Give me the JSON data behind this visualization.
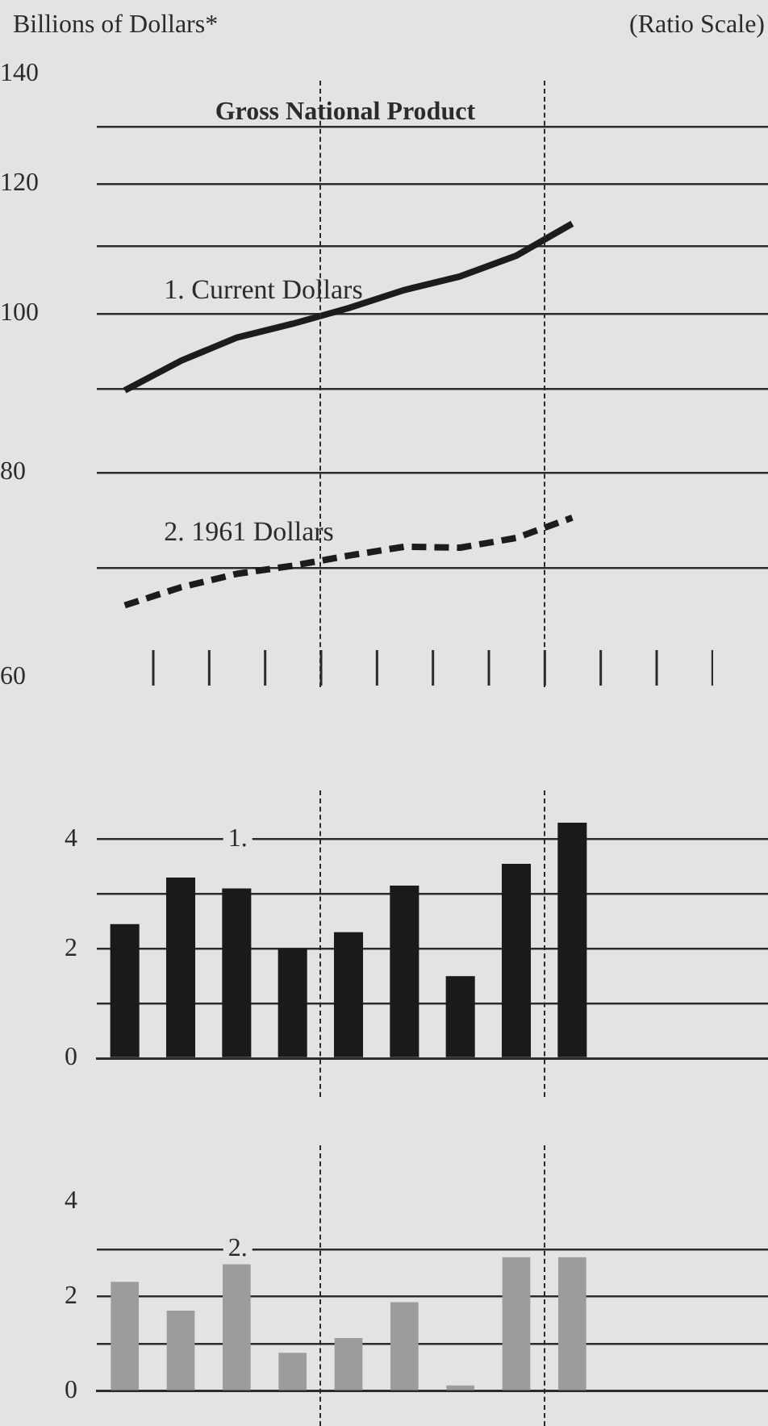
{
  "chart_data": [
    {
      "type": "line",
      "title": "Gross National Product",
      "ylabel": "Billions of Dollars*",
      "annotations": [
        "(Ratio Scale)"
      ],
      "log": true,
      "ylim": [
        60,
        140
      ],
      "yticks": [
        60,
        {
          "value": 70,
          "label": null
        },
        80,
        {
          "value": 90,
          "label": null
        },
        100,
        {
          "value": 110,
          "label": null
        },
        120,
        {
          "value": 130,
          "label": null
        },
        140
      ],
      "categories": [
        null,
        null,
        null,
        null,
        null,
        null,
        null,
        null,
        null,
        null,
        null,
        null
      ],
      "tick_labels": "y",
      "grid": "y",
      "legend": false,
      "marker": "none",
      "series": [
        {
          "name": "1. Current Dollars",
          "color": "#1c1c1c",
          "line_style": "solid",
          "values": [
            89.8,
            93.6,
            96.7,
            98.6,
            100.8,
            103.4,
            105.4,
            108.5,
            113.5,
            null,
            null,
            null
          ]
        },
        {
          "name": "2. 1961 Dollars",
          "color": "#1c1c1c",
          "line_style": "dashed",
          "values": [
            66.4,
            68.1,
            69.4,
            70.2,
            71.2,
            72.1,
            72.0,
            73.0,
            75.1,
            null,
            null,
            null
          ]
        }
      ]
    },
    {
      "type": "bar",
      "categories": [
        null,
        null,
        null,
        null,
        null,
        null,
        null,
        null,
        null,
        null,
        null,
        null
      ],
      "values": [
        2.45,
        3.3,
        3.1,
        2.0,
        2.3,
        3.15,
        1.5,
        3.55,
        4.3,
        null,
        null,
        null
      ],
      "color": "#1a1a1a",
      "ylim": [
        0,
        4.3
      ],
      "yticks": [
        0,
        {
          "value": 1,
          "label": null
        },
        2,
        {
          "value": 3,
          "label": null
        },
        4
      ],
      "tick_labels": "y",
      "grid": "y",
      "legend": false,
      "annotations": [
        "1."
      ]
    },
    {
      "type": "bar",
      "categories": [
        null,
        null,
        null,
        null,
        null,
        null,
        null,
        null,
        null,
        null,
        null,
        null
      ],
      "values": [
        2.31,
        1.7,
        2.68,
        0.81,
        1.12,
        1.88,
        0.12,
        2.83,
        2.83,
        null,
        null,
        null
      ],
      "color": "#9c9c9a",
      "ylim": [
        0,
        4
      ],
      "yticks": [
        0,
        {
          "value": 1,
          "label": null
        },
        2,
        {
          "value": 3,
          "label": null
        },
        4
      ],
      "tick_labels": "y",
      "grid": "y",
      "legend": false,
      "annotations": [
        "2."
      ]
    }
  ]
}
